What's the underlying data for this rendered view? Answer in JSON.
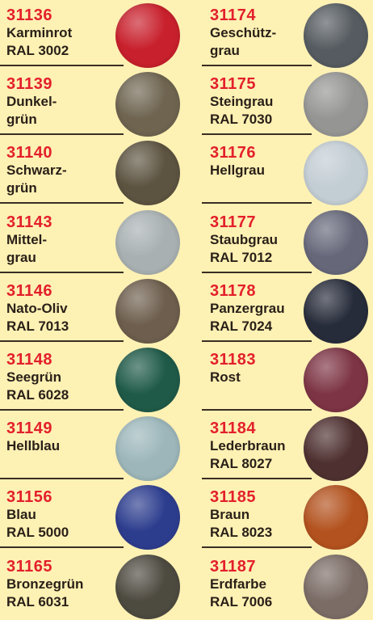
{
  "columns": [
    {
      "items": [
        {
          "code": "31136",
          "lines": [
            "Karminrot",
            "RAL 3002"
          ],
          "color": "#c8202c"
        },
        {
          "code": "31139",
          "lines": [
            "Dunkel-",
            "grün"
          ],
          "color": "#6e6450"
        },
        {
          "code": "31140",
          "lines": [
            "Schwarz-",
            "grün"
          ],
          "color": "#5c5340"
        },
        {
          "code": "31143",
          "lines": [
            "Mittel-",
            "grau"
          ],
          "color": "#a8b0b2"
        },
        {
          "code": "31146",
          "lines": [
            "Nato-Oliv",
            "RAL 7013"
          ],
          "color": "#6d5e4d"
        },
        {
          "code": "31148",
          "lines": [
            "Seegrün",
            "RAL 6028"
          ],
          "color": "#1f5a48"
        },
        {
          "code": "31149",
          "lines": [
            "Hellblau"
          ],
          "color": "#9cb6ba"
        },
        {
          "code": "31156",
          "lines": [
            "Blau",
            "RAL 5000"
          ],
          "color": "#2d3d8e"
        },
        {
          "code": "31165",
          "lines": [
            "Bronzegrün",
            "RAL 6031"
          ],
          "color": "#4d4a40"
        }
      ]
    },
    {
      "items": [
        {
          "code": "31174",
          "lines": [
            "Geschütz-",
            "grau"
          ],
          "color": "#555b60"
        },
        {
          "code": "31175",
          "lines": [
            "Steingrau",
            "RAL 7030"
          ],
          "color": "#959694"
        },
        {
          "code": "31176",
          "lines": [
            "Hellgrau"
          ],
          "color": "#c3cdd4"
        },
        {
          "code": "31177",
          "lines": [
            "Staubgrau",
            "RAL 7012"
          ],
          "color": "#66687a"
        },
        {
          "code": "31178",
          "lines": [
            "Panzergrau",
            "RAL 7024"
          ],
          "color": "#272c3a"
        },
        {
          "code": "31183",
          "lines": [
            "Rost"
          ],
          "color": "#7d3444"
        },
        {
          "code": "31184",
          "lines": [
            "Lederbraun",
            "RAL 8027"
          ],
          "color": "#4e3030"
        },
        {
          "code": "31185",
          "lines": [
            "Braun",
            "RAL 8023"
          ],
          "color": "#b3521e"
        },
        {
          "code": "31187",
          "lines": [
            "Erdfarbe",
            "RAL 7006"
          ],
          "color": "#7b6c66"
        }
      ]
    }
  ]
}
